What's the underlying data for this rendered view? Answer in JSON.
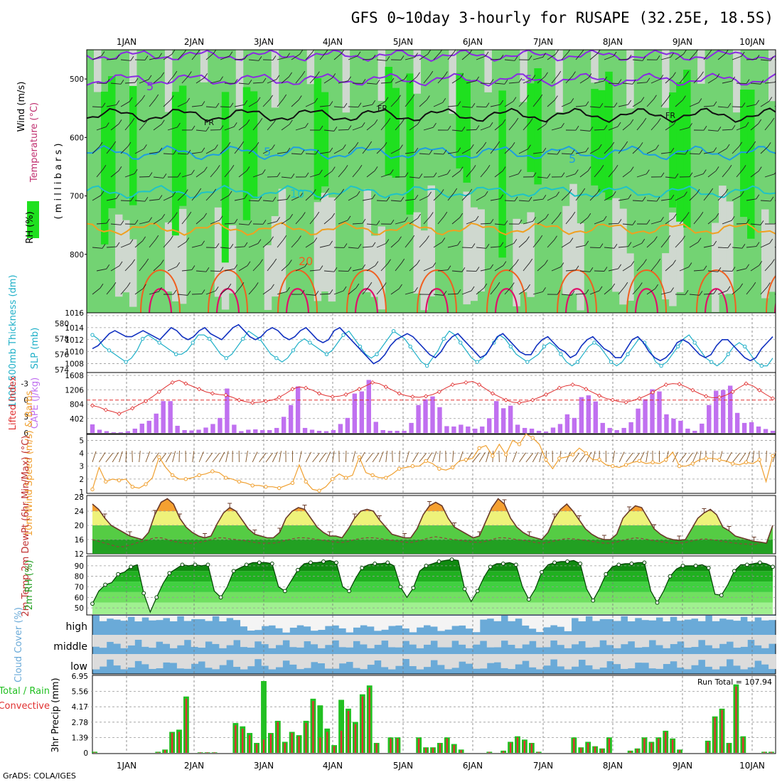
{
  "title": "GFS 0~10day 3-hourly for RUSAPE (32.25E, 18.5S)",
  "credit": "GrADS: COLA/IGES",
  "colors": {
    "rh_light": "#cfd8cf",
    "rh_mid": "#73d373",
    "rh_high": "#1fe01f",
    "isotherm_purple": "#8a2be2",
    "isotherm_blue": "#1e9ee0",
    "isotherm_cyan": "#1ec3c8",
    "isotherm_orange": "#f0a020",
    "isotherm_red": "#f06020",
    "isotherm_magenta": "#e0106a",
    "thickness": "#20b0c8",
    "slp": "#1030c0",
    "lifted": "#e03030",
    "cape": "#c070f0",
    "wind10": "#f0a030",
    "barb": "#805020",
    "cloud": "#6aaad8",
    "precip_total": "#22c022",
    "precip_conv": "#e03030"
  },
  "chart_data": [
    {
      "id": "upper-air",
      "type": "heatmap",
      "vlabels": {
        "rh": "RH (%)",
        "temp": "Temperature (°C)",
        "wind": "Wind (m/s)",
        "unit": "( m i l l i b a r s )"
      },
      "ylim": [
        450,
        900
      ],
      "yticks": [
        500,
        600,
        700,
        800
      ],
      "contour_labels": [
        "5",
        "-5",
        "FR",
        "FR",
        "FR",
        "5",
        "5",
        "10",
        "20"
      ]
    },
    {
      "id": "thickness-slp",
      "type": "line",
      "ylabel_left": "1000-500mb Thickness (dm)",
      "ylabel_right": "SLP (mb)",
      "left_ticks": [
        574,
        576,
        578,
        580
      ],
      "right_ticks": [
        1008,
        1010,
        1012,
        1014,
        1016
      ],
      "top_left_label": "1016",
      "ylim_left": [
        574,
        581
      ],
      "ylim_right": [
        1007,
        1016
      ],
      "series": [
        {
          "values": [
            578.5,
            578,
            577,
            576.5,
            576,
            575.5,
            575,
            575.5,
            576.5,
            578,
            578.5,
            578,
            577.5,
            577,
            576.5,
            576,
            576,
            576.5,
            577.5,
            578.5,
            578.5,
            578,
            577,
            576,
            575.5,
            576,
            577,
            578,
            579,
            578.5,
            578,
            577,
            576,
            575.5,
            575,
            575.5,
            576.5,
            577.5,
            578,
            577.5,
            577,
            576.5,
            576,
            576.5,
            577.5,
            578.5,
            579,
            578,
            577,
            576,
            575.5,
            576,
            577,
            578,
            579,
            578.5,
            578,
            577,
            576,
            575,
            574.5,
            575.5,
            576.5,
            578,
            579,
            578.5,
            577.5,
            576.5,
            575.5,
            575,
            575.5,
            576.5,
            577.5,
            578.5,
            578,
            577,
            576,
            575.5,
            575,
            575.5,
            576,
            577,
            577.5,
            577,
            576,
            575,
            574.5,
            575,
            576,
            577,
            577.5,
            577,
            576,
            575,
            574.5,
            575,
            576,
            577,
            578,
            577.5,
            576.5,
            575,
            574.5,
            575,
            576,
            577,
            578,
            578.5,
            577.5,
            576.5,
            575.5,
            575,
            574.5,
            575,
            576,
            577,
            577.5,
            577,
            576,
            575,
            574.5,
            574.5,
            575.5
          ]
        },
        {
          "values": [
            1010.5,
            1011,
            1012,
            1013,
            1013.5,
            1013,
            1012.5,
            1012.5,
            1013,
            1013.5,
            1013,
            1012.5,
            1012,
            1013,
            1014,
            1013.5,
            1012.5,
            1012,
            1012.5,
            1013.5,
            1014,
            1013,
            1012.5,
            1012,
            1013,
            1014,
            1014.5,
            1013.5,
            1012.5,
            1012,
            1012.5,
            1013.5,
            1014,
            1013.5,
            1012.5,
            1012,
            1012.5,
            1013.5,
            1014,
            1013,
            1012,
            1011.5,
            1012,
            1013.5,
            1014,
            1013,
            1012,
            1011,
            1010,
            1009,
            1008,
            1008.5,
            1009.5,
            1011,
            1012,
            1012.5,
            1013,
            1012.5,
            1011.5,
            1010.5,
            1009.5,
            1009,
            1010,
            1011.5,
            1012.5,
            1013,
            1012,
            1011,
            1010,
            1009,
            1009.5,
            1011,
            1012.5,
            1013,
            1012,
            1011,
            1010,
            1009.5,
            1009.5,
            1011,
            1012,
            1012.5,
            1011.5,
            1010.5,
            1010,
            1009,
            1009.5,
            1011,
            1012,
            1012.5,
            1011.5,
            1010.5,
            1010,
            1009,
            1009,
            1010.5,
            1012,
            1012.5,
            1011.5,
            1010,
            1009,
            1008.5,
            1009,
            1010,
            1011.5,
            1012,
            1011.5,
            1010.5,
            1009.5,
            1009,
            1009.5,
            1011,
            1012,
            1012,
            1011,
            1010,
            1009,
            1008.5,
            1009,
            1010.5,
            1011.5,
            1012.5
          ]
        }
      ]
    },
    {
      "id": "lifted-cape",
      "type": "bar",
      "ylabel_left": "Lifted Index",
      "ylabel_right": "CAPE (J/kg)",
      "left_ticks": [
        "-3",
        "0",
        "3",
        "6"
      ],
      "right_ticks": [
        "402",
        "804",
        "1206",
        "1608"
      ],
      "cape": [
        240,
        90,
        50,
        20,
        20,
        50,
        120,
        260,
        340,
        540,
        890,
        890,
        200,
        80,
        70,
        90,
        150,
        250,
        420,
        1240,
        230,
        50,
        90,
        100,
        80,
        80,
        140,
        450,
        780,
        1300,
        140,
        90,
        60,
        50,
        80,
        250,
        420,
        1100,
        1160,
        1480,
        310,
        80,
        60,
        60,
        60,
        280,
        780,
        940,
        1020,
        720,
        190,
        180,
        230,
        180,
        120,
        180,
        410,
        890,
        690,
        760,
        230,
        140,
        120,
        60,
        40,
        150,
        250,
        520,
        420,
        1000,
        1050,
        880,
        280,
        140,
        80,
        140,
        300,
        680,
        940,
        1220,
        1160,
        520,
        400,
        340,
        120,
        60,
        260,
        780,
        1180,
        1200,
        1320,
        560,
        280,
        300,
        180,
        110,
        60
      ],
      "lifted": [
        1.0,
        1.3,
        1.8,
        2.1,
        2.5,
        2.0,
        1.5,
        0.8,
        0.2,
        -0.6,
        -1.5,
        -2.4,
        -3.2,
        -3.6,
        -3.0,
        -2.5,
        -2.0,
        -1.5,
        -1.2,
        -1.0,
        -0.9,
        -0.5,
        0.0,
        0.3,
        0.5,
        0.4,
        0.2,
        0.0,
        -0.5,
        -1.2,
        -2.0,
        -2.4,
        -2.2,
        -1.8,
        -1.2,
        -0.8,
        -0.6,
        -0.7,
        -1.0,
        -1.5,
        -2.0,
        -2.6,
        -3.2,
        -3.0,
        -2.4,
        -1.8,
        -1.2,
        -0.8,
        -0.6,
        -0.5,
        -0.7,
        -1.0,
        -1.5,
        -2.2,
        -2.8,
        -3.0,
        -3.2,
        -3.4,
        -2.8,
        -2.0,
        -1.2,
        -0.6,
        0.0,
        0.4,
        0.5,
        0.3,
        0.0,
        -0.5,
        -1.0,
        -1.6,
        -2.2,
        -2.6,
        -2.8,
        -2.6,
        -2.0,
        -1.4,
        -0.8,
        -0.3,
        0.0,
        0.3,
        0.4,
        0.1,
        -0.3,
        -0.8,
        -1.4,
        -2.2,
        -2.8,
        -3.0,
        -2.9,
        -2.4,
        -1.8,
        -1.2,
        -0.7,
        -0.4,
        -0.5,
        -0.9,
        -1.5,
        -2.3,
        -3.0,
        -2.6,
        -1.8,
        -1.0,
        -0.3
      ]
    },
    {
      "id": "wind10",
      "type": "line",
      "ylabel": "10m Wind Speed (m/s) & Barbs",
      "ticks": [
        "1",
        "2",
        "3",
        "4",
        "5"
      ],
      "ylim": [
        1,
        5.3
      ],
      "values": [
        1.2,
        2.9,
        1.8,
        2.0,
        1.9,
        2.0,
        1.4,
        1.3,
        1.6,
        2.1,
        3.7,
        2.9,
        2.3,
        2.0,
        2.0,
        2.1,
        2.3,
        2.4,
        2.6,
        2.5,
        2.1,
        2.0,
        1.8,
        1.7,
        1.5,
        1.5,
        1.4,
        1.4,
        1.3,
        1.5,
        1.7,
        3.1,
        1.8,
        1.2,
        1.1,
        1.4,
        2.0,
        2.4,
        2.1,
        2.3,
        3.7,
        2.5,
        2.3,
        2.1,
        2.1,
        2.4,
        2.8,
        2.9,
        3.0,
        3.0,
        3.4,
        3.2,
        2.8,
        2.7,
        2.9,
        3.4,
        3.5,
        3.6,
        4.4,
        4.6,
        3.8,
        4.7,
        3.9,
        5.0,
        4.7,
        5.5,
        5.2,
        4.7,
        3.5,
        2.8,
        3.6,
        3.7,
        3.9,
        4.4,
        4.0,
        3.5,
        3.5,
        3.1,
        3.0,
        2.9,
        3.1,
        3.3,
        3.4,
        3.2,
        3.3,
        3.2,
        3.5,
        4.1,
        3.0,
        3.0,
        3.2,
        3.5,
        3.6,
        3.6,
        3.5,
        3.4,
        3.2,
        3.1,
        3.3,
        3.2,
        3.5,
        1.8,
        3.8
      ]
    },
    {
      "id": "temp2m",
      "type": "area",
      "ylabel": "2m Temp 2m DewPt (6hr Min/Max) (°C)",
      "ticks": [
        "12",
        "16",
        "20",
        "24",
        "28"
      ],
      "ylim": [
        12,
        28
      ],
      "temp": [
        26,
        24.5,
        22,
        20,
        19,
        18,
        17,
        16.5,
        16,
        18,
        23,
        26.5,
        27.5,
        26,
        22,
        19.5,
        18,
        17,
        16.5,
        17,
        20.5,
        23.5,
        25,
        24,
        21.5,
        19,
        17.5,
        17,
        16.5,
        16.5,
        18,
        22,
        24,
        25,
        24.5,
        22,
        19.5,
        18,
        17,
        17,
        16.5,
        19,
        22,
        24,
        24.5,
        24,
        21.5,
        19.5,
        17.5,
        17,
        16.5,
        16.5,
        19,
        23,
        25.5,
        26.5,
        25.5,
        22,
        19.5,
        18.5,
        17.5,
        16.5,
        17,
        21,
        25,
        27.5,
        26,
        22,
        19.5,
        18,
        17,
        16.5,
        16,
        18,
        22,
        24.5,
        26,
        24,
        21.5,
        19,
        17.5,
        16.5,
        16,
        16,
        17.5,
        22,
        24,
        25.5,
        25,
        22,
        19,
        17.5,
        16.5,
        16,
        15.8,
        16,
        19,
        22,
        23.5,
        24.5,
        23,
        19.5,
        18.5,
        17,
        16.5,
        16,
        15.5,
        15.3,
        15,
        20
      ],
      "dewpt": [
        16,
        15.5,
        15,
        14.5,
        14,
        14,
        14.5,
        15,
        15.5,
        16,
        16.5,
        16.5,
        16,
        15.5,
        15.2,
        15,
        15,
        15.2,
        15.5,
        16,
        16.5,
        16.5,
        16.2,
        16,
        15.8,
        15.5,
        15.2,
        15,
        15,
        15,
        15.3,
        15.8,
        16.2,
        16.5,
        16.5,
        16.3,
        16,
        15.8,
        15.5,
        15.3,
        15.2,
        15.5,
        16,
        16.3,
        16.5,
        16.5,
        16.3,
        16,
        15.8,
        15.5,
        15.3,
        15.2,
        15.5,
        16,
        16.5,
        16.8,
        16.5,
        16.2,
        16,
        15.8,
        15.5,
        15.3,
        15.2,
        15.5,
        16,
        16.5,
        16.5,
        16.3,
        16,
        15.8,
        15.5,
        15.2,
        15,
        15.2,
        15.6,
        16,
        16.3,
        16.2,
        16,
        15.8,
        15.5,
        15.2,
        15,
        15,
        15.3,
        15.8,
        16.2,
        16.5,
        16.3,
        16,
        15.7,
        15.4,
        15.2,
        15,
        15,
        15.2,
        15.6,
        16,
        16.2,
        16,
        15.8,
        15.5,
        15.2,
        15,
        14.8,
        14.7,
        14.6,
        15
      ]
    },
    {
      "id": "rh2m",
      "type": "area",
      "ylabel": "2m RH (%)",
      "ticks": [
        "50",
        "60",
        "70",
        "80",
        "90"
      ],
      "ylim": [
        44,
        98
      ],
      "values": [
        54,
        66,
        72,
        74,
        82,
        84,
        89,
        91,
        64,
        46,
        60,
        73,
        83,
        87,
        91,
        90,
        91,
        90,
        91,
        66,
        60,
        70,
        85,
        88,
        91,
        93,
        93,
        93,
        92,
        70,
        66,
        76,
        86,
        92,
        93,
        93,
        94,
        95,
        93,
        70,
        66,
        78,
        88,
        91,
        92,
        92,
        93,
        90,
        70,
        60,
        69,
        85,
        90,
        92,
        94,
        95,
        96,
        95,
        68,
        56,
        66,
        79,
        89,
        92,
        92,
        93,
        91,
        70,
        58,
        68,
        84,
        91,
        93,
        94,
        94,
        95,
        92,
        68,
        57,
        68,
        82,
        89,
        91,
        92,
        92,
        93,
        93,
        66,
        55,
        66,
        80,
        87,
        90,
        90,
        90,
        91,
        88,
        63,
        62,
        72,
        85,
        91,
        91,
        92,
        93,
        92,
        89
      ]
    },
    {
      "id": "cloud",
      "type": "bar",
      "ylabel": "Cloud Cover (%)",
      "levels": [
        "high",
        "middle",
        "low"
      ]
    },
    {
      "id": "precip",
      "type": "bar",
      "ylabel": "3hr Precip (mm)",
      "legend_label": "Total / Rain",
      "legend_label2": "Convective",
      "run_total_label": "Run Total = 107.94",
      "ticks": [
        "0",
        "1.39",
        "2.78",
        "4.17",
        "5.56",
        "6.95"
      ],
      "ylim": [
        0,
        6.95
      ],
      "total": [
        0.1,
        0,
        0,
        0,
        0,
        0,
        0,
        0,
        0,
        0.1,
        0.3,
        1.9,
        2.1,
        5.1,
        0,
        0.05,
        0.05,
        0.05,
        0,
        0,
        2.7,
        2.4,
        1.8,
        0.9,
        6.5,
        1.8,
        2.9,
        1.0,
        1.9,
        1.6,
        2.9,
        4.9,
        4.3,
        2.2,
        0.7,
        4.8,
        4.0,
        2.8,
        5.3,
        6.1,
        0.9,
        0,
        1.4,
        1.4,
        0,
        0,
        1.4,
        0.5,
        0.5,
        0.9,
        1.4,
        0.8,
        0.3,
        0,
        0,
        0,
        0.1,
        0,
        0.2,
        1.0,
        1.5,
        1.2,
        0.9,
        0.1,
        0,
        0,
        0,
        0,
        1.4,
        0.5,
        1.0,
        0.6,
        0.4,
        1.4,
        0,
        0,
        0.2,
        0.4,
        1.4,
        1.0,
        1.4,
        2.0,
        1.3,
        0.3,
        0,
        0,
        0,
        1.1,
        3.3,
        4.0,
        0.9,
        6.2,
        1.5,
        0,
        0,
        0.1,
        0.1
      ],
      "conv": [
        0.05,
        0,
        0,
        0,
        0,
        0,
        0,
        0,
        0,
        0.05,
        0.25,
        1.8,
        1.9,
        4.9,
        0,
        0.05,
        0.05,
        0.05,
        0,
        0,
        2.5,
        2.2,
        1.6,
        0.8,
        1.2,
        1.7,
        2.8,
        0.9,
        1.8,
        1.5,
        2.7,
        4.7,
        1.4,
        1.9,
        0.6,
        2.0,
        3.8,
        2.6,
        5.1,
        5.9,
        0.85,
        0,
        1.3,
        1.3,
        0,
        0,
        1.3,
        0.45,
        0.45,
        0.85,
        1.3,
        0.7,
        0.25,
        0,
        0,
        0,
        0.08,
        0,
        0.15,
        0.9,
        1.4,
        1.1,
        0.85,
        0.08,
        0,
        0,
        0,
        0,
        1.3,
        0.45,
        0.9,
        0.55,
        0.35,
        1.3,
        0,
        0,
        0.15,
        0.35,
        1.3,
        0.9,
        1.3,
        1.9,
        1.2,
        0.25,
        0,
        0,
        0,
        1.0,
        3.2,
        3.9,
        0.85,
        6.0,
        1.4,
        0,
        0,
        0.08,
        0.08
      ]
    }
  ],
  "dates": [
    "1JAN",
    "2JAN",
    "3JAN",
    "4JAN",
    "5JAN",
    "6JAN",
    "7JAN",
    "8JAN",
    "9JAN",
    "10JAN"
  ]
}
